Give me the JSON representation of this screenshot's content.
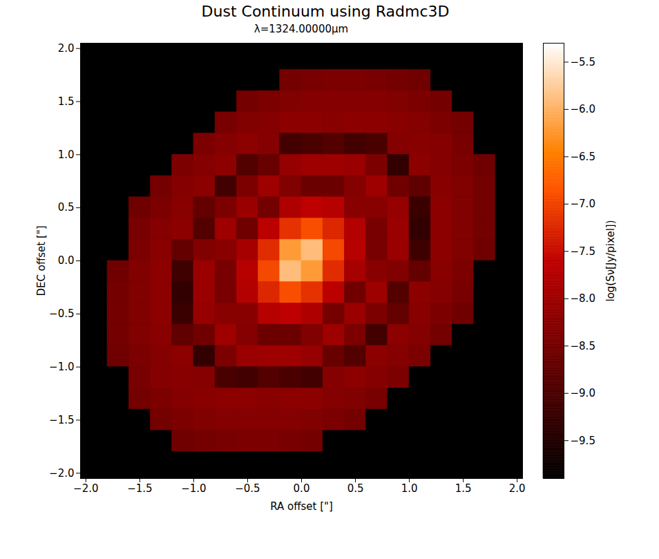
{
  "chart_data": {
    "type": "heatmap",
    "title": "Dust Continuum using Radmc3D",
    "subtitle": "λ=1324.00000μm",
    "x_label": "RA offset [\"]",
    "y_label": "DEC offset [\"]",
    "xlim": [
      -2.05,
      2.05
    ],
    "ylim": [
      -2.05,
      2.05
    ],
    "xticks": [
      {
        "value": -2.0,
        "label": "−2.0"
      },
      {
        "value": -1.5,
        "label": "−1.5"
      },
      {
        "value": -1.0,
        "label": "−1.0"
      },
      {
        "value": -0.5,
        "label": "−0.5"
      },
      {
        "value": 0,
        "label": "0.0"
      },
      {
        "value": 0.5,
        "label": "0.5"
      },
      {
        "value": 1.0,
        "label": "1.0"
      },
      {
        "value": 1.5,
        "label": "1.5"
      },
      {
        "value": 2.0,
        "label": "2.0"
      }
    ],
    "yticks": [
      {
        "value": -2.0,
        "label": "−2.0"
      },
      {
        "value": -1.5,
        "label": "−1.5"
      },
      {
        "value": -1.0,
        "label": "−1.0"
      },
      {
        "value": -0.5,
        "label": "−0.5"
      },
      {
        "value": 0,
        "label": "0.0"
      },
      {
        "value": 0.5,
        "label": "0.5"
      },
      {
        "value": 1.0,
        "label": "1.0"
      },
      {
        "value": 1.5,
        "label": "1.5"
      },
      {
        "value": 2.0,
        "label": "2.0"
      }
    ],
    "grid": false,
    "x": [
      -1.9,
      -1.7,
      -1.5,
      -1.3,
      -1.1,
      -0.9,
      -0.7,
      -0.5,
      -0.3,
      -0.1,
      0.1,
      0.3,
      0.5,
      0.7,
      0.9,
      1.1,
      1.3,
      1.5,
      1.7,
      1.9
    ],
    "y": [
      1.9,
      1.7,
      1.5,
      1.3,
      1.1,
      0.9,
      0.7,
      0.5,
      0.3,
      0.1,
      -0.1,
      -0.3,
      -0.5,
      -0.7,
      -0.9,
      -1.1,
      -1.3,
      -1.5,
      -1.7,
      -1.9
    ],
    "cells": [
      [
        -9.9,
        -9.9,
        -9.9,
        -9.9,
        -9.9,
        -9.9,
        -9.9,
        -9.9,
        -9.9,
        -9.9,
        -9.9,
        -9.9,
        -9.9,
        -9.9,
        -9.9,
        -9.9,
        -9.9,
        -9.9,
        -9.9,
        -9.9
      ],
      [
        -9.9,
        -9.9,
        -9.9,
        -9.9,
        -9.9,
        -9.9,
        -9.9,
        -9.9,
        -9.9,
        -8.5,
        -8.45,
        -8.4,
        -8.4,
        -8.45,
        -8.5,
        -8.55,
        -9.9,
        -9.9,
        -9.9,
        -9.9
      ],
      [
        -9.9,
        -9.9,
        -9.9,
        -9.9,
        -9.9,
        -9.9,
        -9.9,
        -8.5,
        -8.4,
        -8.35,
        -8.3,
        -8.3,
        -8.3,
        -8.3,
        -8.35,
        -8.4,
        -8.5,
        -9.9,
        -9.9,
        -9.9
      ],
      [
        -9.9,
        -9.9,
        -9.9,
        -9.9,
        -9.9,
        -9.9,
        -8.45,
        -8.35,
        -8.3,
        -8.2,
        -8.2,
        -8.25,
        -8.2,
        -8.2,
        -8.25,
        -8.3,
        -8.4,
        -8.5,
        -9.9,
        -9.9
      ],
      [
        -9.9,
        -9.9,
        -9.9,
        -9.9,
        -9.9,
        -8.4,
        -8.3,
        -8.2,
        -8.3,
        -9.1,
        -9.0,
        -8.9,
        -9.1,
        -9.0,
        -8.3,
        -8.25,
        -8.3,
        -8.45,
        -9.9,
        -9.9
      ],
      [
        -9.9,
        -9.9,
        -9.9,
        -9.9,
        -8.4,
        -8.3,
        -8.2,
        -8.9,
        -8.65,
        -8.1,
        -8.0,
        -8.0,
        -8.05,
        -8.4,
        -9.3,
        -8.2,
        -8.3,
        -8.4,
        -8.55,
        -9.9
      ],
      [
        -9.9,
        -9.9,
        -9.9,
        -8.5,
        -8.3,
        -8.2,
        -9.1,
        -8.4,
        -8.0,
        -8.35,
        -8.6,
        -8.6,
        -8.3,
        -8.0,
        -8.55,
        -8.75,
        -8.25,
        -8.35,
        -8.5,
        -9.9
      ],
      [
        -9.9,
        -9.9,
        -8.55,
        -8.4,
        -8.25,
        -8.7,
        -8.4,
        -8.05,
        -8.5,
        -7.8,
        -7.6,
        -7.7,
        -8.25,
        -8.25,
        -8.1,
        -9.2,
        -8.2,
        -8.35,
        -8.5,
        -9.9
      ],
      [
        -9.9,
        -9.9,
        -8.45,
        -8.3,
        -8.2,
        -8.9,
        -8.0,
        -8.55,
        -7.65,
        -7.15,
        -6.9,
        -7.25,
        -7.75,
        -8.45,
        -8.05,
        -9.3,
        -8.2,
        -8.35,
        -8.5,
        -9.9
      ],
      [
        -9.9,
        -9.9,
        -8.4,
        -8.25,
        -8.7,
        -8.35,
        -8.25,
        -7.9,
        -7.2,
        -6.2,
        -5.9,
        -6.95,
        -7.7,
        -8.45,
        -8.05,
        -9.15,
        -8.2,
        -8.35,
        -8.55,
        -9.9
      ],
      [
        -9.9,
        -8.55,
        -8.35,
        -8.2,
        -9.15,
        -8.05,
        -8.45,
        -7.7,
        -6.95,
        -5.9,
        -6.2,
        -7.2,
        -7.9,
        -8.25,
        -8.35,
        -8.7,
        -8.25,
        -8.4,
        -9.9,
        -9.9
      ],
      [
        -9.9,
        -8.5,
        -8.35,
        -8.2,
        -9.3,
        -8.05,
        -8.45,
        -7.75,
        -7.25,
        -6.9,
        -7.15,
        -7.65,
        -8.55,
        -8.0,
        -8.9,
        -8.2,
        -8.3,
        -8.45,
        -9.9,
        -9.9
      ],
      [
        -9.9,
        -8.5,
        -8.35,
        -8.2,
        -9.2,
        -8.1,
        -8.25,
        -8.25,
        -7.7,
        -7.6,
        -7.8,
        -8.5,
        -8.05,
        -8.4,
        -8.7,
        -8.25,
        -8.4,
        -8.55,
        -9.9,
        -9.9
      ],
      [
        -9.9,
        -8.5,
        -8.35,
        -8.25,
        -8.75,
        -8.55,
        -8.0,
        -8.3,
        -8.6,
        -8.6,
        -8.35,
        -8.0,
        -8.4,
        -9.1,
        -8.2,
        -8.3,
        -8.5,
        -9.9,
        -9.9,
        -9.9
      ],
      [
        -9.9,
        -8.55,
        -8.4,
        -8.3,
        -8.2,
        -9.3,
        -8.4,
        -8.05,
        -8.0,
        -8.0,
        -8.1,
        -8.65,
        -8.9,
        -8.2,
        -8.3,
        -8.4,
        -9.9,
        -9.9,
        -9.9,
        -9.9
      ],
      [
        -9.9,
        -9.9,
        -8.45,
        -8.3,
        -8.25,
        -8.3,
        -9.0,
        -9.1,
        -8.9,
        -9.0,
        -9.1,
        -8.3,
        -8.2,
        -8.3,
        -8.4,
        -9.9,
        -9.9,
        -9.9,
        -9.9,
        -9.9
      ],
      [
        -9.9,
        -9.9,
        -8.5,
        -8.4,
        -8.3,
        -8.25,
        -8.2,
        -8.2,
        -8.25,
        -8.2,
        -8.2,
        -8.3,
        -8.35,
        -8.45,
        -9.9,
        -9.9,
        -9.9,
        -9.9,
        -9.9,
        -9.9
      ],
      [
        -9.9,
        -9.9,
        -9.9,
        -8.5,
        -8.4,
        -8.35,
        -8.3,
        -8.3,
        -8.3,
        -8.3,
        -8.35,
        -8.4,
        -8.5,
        -9.9,
        -9.9,
        -9.9,
        -9.9,
        -9.9,
        -9.9,
        -9.9
      ],
      [
        -9.9,
        -9.9,
        -9.9,
        -9.9,
        -8.55,
        -8.5,
        -8.45,
        -8.4,
        -8.4,
        -8.45,
        -8.5,
        -9.9,
        -9.9,
        -9.9,
        -9.9,
        -9.9,
        -9.9,
        -9.9,
        -9.9,
        -9.9
      ],
      [
        -9.9,
        -9.9,
        -9.9,
        -9.9,
        -9.9,
        -9.9,
        -9.9,
        -9.9,
        -9.9,
        -9.9,
        -9.9,
        -9.9,
        -9.9,
        -9.9,
        -9.9,
        -9.9,
        -9.9,
        -9.9,
        -9.9,
        -9.9
      ]
    ],
    "colorbar": {
      "label": "log(Sν[Jy/pixel])",
      "range": [
        -9.9,
        -5.3
      ],
      "ticks": [
        {
          "value": -9.5,
          "label": "−9.5"
        },
        {
          "value": -9.0,
          "label": "−9.0"
        },
        {
          "value": -8.5,
          "label": "−8.5"
        },
        {
          "value": -8.0,
          "label": "−8.0"
        },
        {
          "value": -7.5,
          "label": "−7.5"
        },
        {
          "value": -7.0,
          "label": "−7.0"
        },
        {
          "value": -6.5,
          "label": "−6.5"
        },
        {
          "value": -6.0,
          "label": "−6.0"
        },
        {
          "value": -5.5,
          "label": "−5.5"
        }
      ]
    }
  }
}
